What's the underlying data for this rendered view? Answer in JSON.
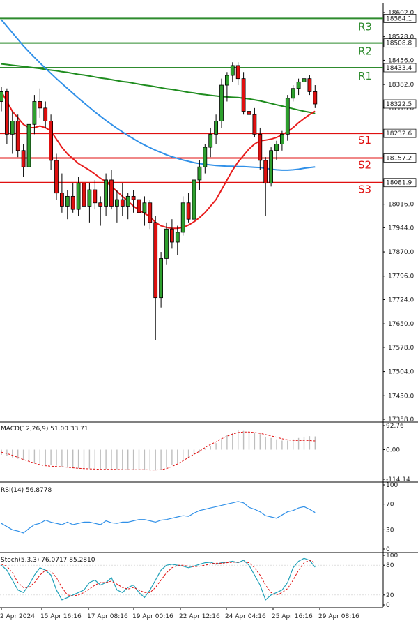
{
  "chart_data": {
    "type": "candlestick",
    "price_axis": {
      "ticks": [
        "18602.0",
        "18528.0",
        "18456.0",
        "18382.0",
        "18310.0",
        "18234.0",
        "18162.0",
        "18088.0",
        "18016.0",
        "17944.0",
        "17870.0",
        "17796.0",
        "17724.0",
        "17650.0",
        "17578.0",
        "17504.0",
        "17430.0",
        "17358.0"
      ],
      "range": [
        17358,
        18602
      ],
      "current_price": "18322.5"
    },
    "levels": [
      {
        "name": "R3",
        "value": "18584.1",
        "color": "#2e8b2e"
      },
      {
        "name": "R2",
        "value": "18508.8",
        "color": "#2e8b2e"
      },
      {
        "name": "R1",
        "value": "18433.4",
        "color": "#2e8b2e"
      },
      {
        "name": "S1",
        "value": "18232.6",
        "color": "#e01010"
      },
      {
        "name": "S2",
        "value": "18157.2",
        "color": "#e01010"
      },
      {
        "name": "S3",
        "value": "18081.9",
        "color": "#e01010"
      }
    ],
    "time_labels": [
      "2 Apr 2024",
      "15 Apr 16:16",
      "17 Apr 08:16",
      "19 Apr 00:16",
      "22 Apr 12:16",
      "24 Apr 04:16",
      "25 Apr 16:16",
      "29 Apr 08:16"
    ],
    "candles": [
      [
        18330,
        18375,
        18300,
        18360
      ],
      [
        18360,
        18370,
        18200,
        18230
      ],
      [
        18230,
        18300,
        18170,
        18270
      ],
      [
        18270,
        18290,
        18160,
        18180
      ],
      [
        18180,
        18200,
        18100,
        18130
      ],
      [
        18130,
        18280,
        18090,
        18260
      ],
      [
        18260,
        18350,
        18230,
        18330
      ],
      [
        18330,
        18370,
        18280,
        18310
      ],
      [
        18310,
        18330,
        18250,
        18270
      ],
      [
        18270,
        18290,
        18120,
        18150
      ],
      [
        18150,
        18170,
        18030,
        18050
      ],
      [
        18050,
        18110,
        17990,
        18010
      ],
      [
        18010,
        18060,
        17970,
        18040
      ],
      [
        18040,
        18080,
        17990,
        18000
      ],
      [
        18000,
        18100,
        17980,
        18080
      ],
      [
        18080,
        18120,
        17950,
        18010
      ],
      [
        18010,
        18080,
        17960,
        18060
      ],
      [
        18060,
        18090,
        18000,
        18020
      ],
      [
        18020,
        18040,
        17950,
        18010
      ],
      [
        18010,
        18110,
        17980,
        18090
      ],
      [
        18090,
        18120,
        18000,
        18010
      ],
      [
        18010,
        18060,
        17960,
        18030
      ],
      [
        18030,
        18080,
        17980,
        18010
      ],
      [
        18010,
        18050,
        17970,
        18040
      ],
      [
        18040,
        18060,
        17990,
        18030
      ],
      [
        18030,
        18060,
        17970,
        17990
      ],
      [
        17990,
        18040,
        17950,
        18020
      ],
      [
        18020,
        18030,
        17940,
        17960
      ],
      [
        17960,
        17980,
        17600,
        17730
      ],
      [
        17730,
        17870,
        17700,
        17850
      ],
      [
        17850,
        17960,
        17830,
        17940
      ],
      [
        17940,
        17970,
        17880,
        17900
      ],
      [
        17900,
        17950,
        17860,
        17930
      ],
      [
        17930,
        18040,
        17920,
        18020
      ],
      [
        18020,
        18050,
        17960,
        17970
      ],
      [
        17970,
        18100,
        17950,
        18090
      ],
      [
        18090,
        18150,
        18060,
        18130
      ],
      [
        18130,
        18200,
        18110,
        18190
      ],
      [
        18190,
        18250,
        18160,
        18230
      ],
      [
        18230,
        18290,
        18200,
        18270
      ],
      [
        18270,
        18400,
        18250,
        18380
      ],
      [
        18380,
        18420,
        18330,
        18410
      ],
      [
        18410,
        18450,
        18390,
        18440
      ],
      [
        18440,
        18450,
        18380,
        18400
      ],
      [
        18400,
        18420,
        18290,
        18300
      ],
      [
        18300,
        18330,
        18260,
        18290
      ],
      [
        18290,
        18310,
        18220,
        18230
      ],
      [
        18230,
        18250,
        18120,
        18150
      ],
      [
        18150,
        18160,
        17980,
        18080
      ],
      [
        18080,
        18190,
        18070,
        18180
      ],
      [
        18180,
        18210,
        18150,
        18200
      ],
      [
        18200,
        18240,
        18180,
        18230
      ],
      [
        18230,
        18350,
        18210,
        18340
      ],
      [
        18340,
        18380,
        18330,
        18370
      ],
      [
        18370,
        18400,
        18350,
        18390
      ],
      [
        18390,
        18420,
        18370,
        18400
      ],
      [
        18400,
        18410,
        18350,
        18360
      ],
      [
        18360,
        18380,
        18310,
        18322.5
      ]
    ],
    "moving_averages": [
      {
        "color": "#1e8c1e",
        "values": [
          18445,
          18443,
          18441,
          18439,
          18437,
          18435,
          18433,
          18431,
          18428,
          18426,
          18424,
          18421,
          18419,
          18416,
          18413,
          18411,
          18408,
          18405,
          18402,
          18400,
          18397,
          18394,
          18391,
          18389,
          18386,
          18383,
          18380,
          18378,
          18375,
          18372,
          18369,
          18367,
          18364,
          18361,
          18358,
          18356,
          18353,
          18351,
          18349,
          18347,
          18345,
          18344,
          18343,
          18342,
          18340,
          18338,
          18335,
          18332,
          18328,
          18324,
          18320,
          18316,
          18312,
          18308,
          18304,
          18300,
          18297,
          18293
        ]
      },
      {
        "color": "#3090e8",
        "values": [
          18580,
          18560,
          18540,
          18520,
          18500,
          18482,
          18465,
          18448,
          18432,
          18416,
          18400,
          18385,
          18370,
          18355,
          18340,
          18326,
          18312,
          18298,
          18285,
          18272,
          18260,
          18248,
          18237,
          18226,
          18216,
          18206,
          18197,
          18189,
          18181,
          18174,
          18167,
          18161,
          18156,
          18151,
          18147,
          18143,
          18140,
          18138,
          18136,
          18134,
          18133,
          18132,
          18132,
          18131,
          18131,
          18130,
          18129,
          18128,
          18126,
          18123,
          18121,
          18120,
          18120,
          18121,
          18123,
          18126,
          18128,
          18130
        ]
      },
      {
        "color": "#e81c1c",
        "values": [
          18360,
          18330,
          18300,
          18280,
          18260,
          18250,
          18250,
          18255,
          18250,
          18240,
          18215,
          18190,
          18170,
          18155,
          18140,
          18130,
          18120,
          18108,
          18095,
          18085,
          18070,
          18055,
          18040,
          18025,
          18010,
          17998,
          17988,
          17978,
          17960,
          17950,
          17945,
          17942,
          17942,
          17945,
          17952,
          17962,
          17975,
          17990,
          18010,
          18030,
          18060,
          18090,
          18120,
          18145,
          18165,
          18185,
          18200,
          18210,
          18212,
          18215,
          18220,
          18228,
          18238,
          18250,
          18265,
          18278,
          18290,
          18300
        ]
      }
    ],
    "indicators": [
      {
        "name": "MACD(12,26,9) 51.00 33.71",
        "type": "histogram",
        "axis_ticks": [
          "92.76",
          "0.00",
          "-114.14"
        ],
        "range": [
          -114.14,
          92.76
        ],
        "histogram": [
          -20,
          -25,
          -30,
          -35,
          -40,
          -45,
          -50,
          -55,
          -60,
          -60,
          -62,
          -65,
          -68,
          -70,
          -72,
          -72,
          -73,
          -73,
          -74,
          -74,
          -75,
          -75,
          -76,
          -76,
          -76,
          -77,
          -77,
          -78,
          -80,
          -78,
          -70,
          -60,
          -50,
          -40,
          -30,
          -20,
          -10,
          5,
          15,
          25,
          40,
          55,
          65,
          75,
          72,
          68,
          65,
          60,
          50,
          45,
          40,
          35,
          35,
          40,
          45,
          50,
          52,
          51
        ],
        "signal": [
          -10,
          -15,
          -22,
          -30,
          -38,
          -45,
          -52,
          -58,
          -62,
          -64,
          -65,
          -66,
          -68,
          -70,
          -72,
          -73,
          -74,
          -75,
          -76,
          -76,
          -76,
          -76,
          -77,
          -77,
          -77,
          -77,
          -77,
          -78,
          -78,
          -77,
          -73,
          -65,
          -55,
          -43,
          -30,
          -18,
          -6,
          8,
          20,
          30,
          42,
          52,
          60,
          66,
          68,
          68,
          66,
          63,
          58,
          53,
          48,
          42,
          38,
          36,
          35,
          36,
          35,
          33.71
        ]
      },
      {
        "name": "RSI(14) 56.8778",
        "type": "line",
        "axis_ticks": [
          "100",
          "70",
          "30",
          "0"
        ],
        "range": [
          0,
          100
        ],
        "line_color": "#3090e8",
        "values": [
          40,
          35,
          30,
          28,
          25,
          32,
          38,
          40,
          45,
          42,
          40,
          38,
          42,
          38,
          40,
          42,
          42,
          40,
          38,
          44,
          41,
          40,
          42,
          42,
          44,
          46,
          46,
          44,
          42,
          45,
          46,
          48,
          50,
          52,
          51,
          56,
          60,
          62,
          64,
          66,
          68,
          70,
          72,
          74,
          72,
          65,
          62,
          58,
          52,
          50,
          48,
          53,
          58,
          60,
          64,
          66,
          62,
          56.88
        ]
      },
      {
        "name": "Stoch(5,3,3) 76.0717 85.2810",
        "type": "stoch",
        "axis_ticks": [
          "100",
          "80",
          "20",
          "0"
        ],
        "range": [
          0,
          100
        ],
        "k_color": "#20a0b8",
        "d_color": "#e01010",
        "k": [
          80,
          70,
          50,
          30,
          25,
          40,
          60,
          75,
          70,
          60,
          30,
          10,
          15,
          20,
          25,
          30,
          45,
          50,
          40,
          45,
          55,
          30,
          25,
          35,
          40,
          25,
          15,
          30,
          50,
          70,
          80,
          82,
          80,
          78,
          75,
          78,
          82,
          85,
          86,
          82,
          85,
          86,
          88,
          85,
          90,
          80,
          60,
          40,
          10,
          20,
          25,
          30,
          45,
          75,
          88,
          94,
          90,
          76.07
        ],
        "d": [
          82,
          78,
          65,
          45,
          35,
          35,
          45,
          60,
          70,
          68,
          55,
          35,
          20,
          18,
          20,
          25,
          32,
          40,
          45,
          45,
          48,
          42,
          35,
          32,
          35,
          30,
          25,
          25,
          35,
          50,
          65,
          75,
          80,
          80,
          78,
          77,
          78,
          80,
          83,
          84,
          84,
          85,
          86,
          86,
          87,
          85,
          75,
          60,
          40,
          25,
          20,
          25,
          33,
          50,
          70,
          85,
          90,
          85.28
        ]
      }
    ]
  }
}
